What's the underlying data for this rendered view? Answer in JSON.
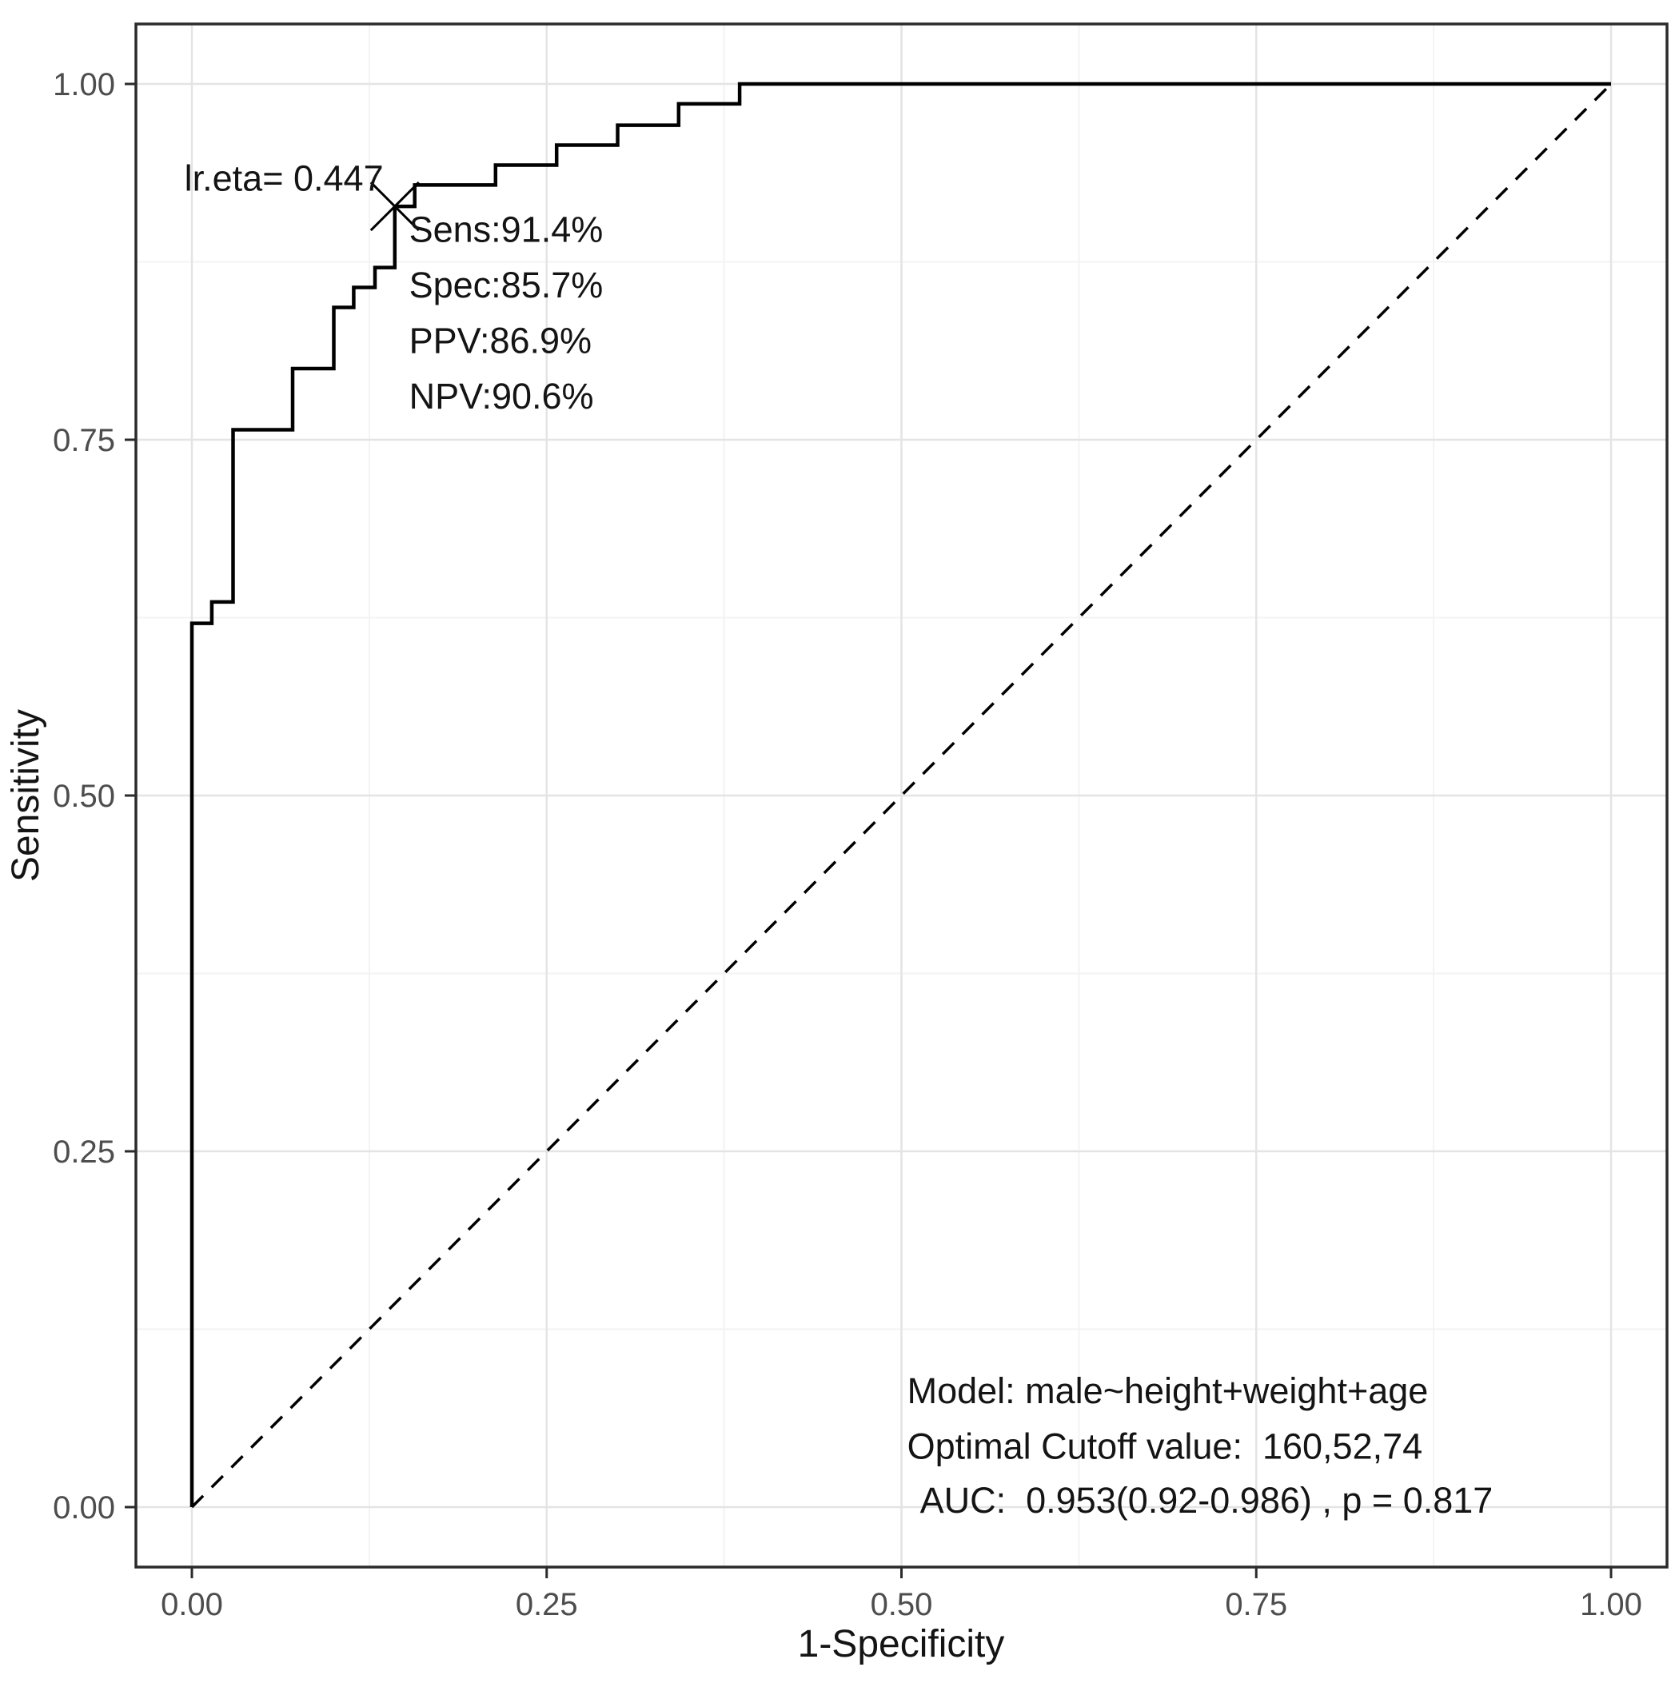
{
  "chart_data": {
    "type": "line",
    "title": "",
    "xlabel": "1-Specificity",
    "ylabel": "Sensitivity",
    "xlim": [
      0,
      1
    ],
    "ylim": [
      0,
      1
    ],
    "grid": "on",
    "legend": "none",
    "x_tick_values": [
      0,
      0.25,
      0.5,
      0.75,
      1
    ],
    "x_tick_labels": [
      "0.00",
      "0.25",
      "0.50",
      "0.75",
      "1.00"
    ],
    "y_tick_values": [
      0,
      0.25,
      0.5,
      0.75,
      1
    ],
    "y_tick_labels": [
      "0.00",
      "0.25",
      "0.50",
      "0.75",
      "1.00"
    ],
    "colors": {
      "curve": "#000000",
      "grid_major": "#e4e4e4",
      "grid_minor": "#f3f3f3",
      "panel_border": "#2b2b2b",
      "tick_label": "#4d4d4d",
      "text": "#141414"
    },
    "series": [
      {
        "name": "ROC curve",
        "style": "solid",
        "points": [
          [
            0,
            0
          ],
          [
            0,
            0.621
          ],
          [
            0.014,
            0.621
          ],
          [
            0.014,
            0.636
          ],
          [
            0.029,
            0.636
          ],
          [
            0.029,
            0.757
          ],
          [
            0.071,
            0.757
          ],
          [
            0.071,
            0.8
          ],
          [
            0.1,
            0.8
          ],
          [
            0.1,
            0.843
          ],
          [
            0.114,
            0.843
          ],
          [
            0.114,
            0.857
          ],
          [
            0.129,
            0.857
          ],
          [
            0.129,
            0.871
          ],
          [
            0.143,
            0.871
          ],
          [
            0.143,
            0.914
          ],
          [
            0.157,
            0.914
          ],
          [
            0.157,
            0.929
          ],
          [
            0.214,
            0.929
          ],
          [
            0.214,
            0.943
          ],
          [
            0.257,
            0.943
          ],
          [
            0.257,
            0.957
          ],
          [
            0.3,
            0.957
          ],
          [
            0.3,
            0.971
          ],
          [
            0.343,
            0.971
          ],
          [
            0.343,
            0.986
          ],
          [
            0.386,
            0.986
          ],
          [
            0.386,
            1
          ],
          [
            1,
            1
          ]
        ]
      },
      {
        "name": "Reference diagonal",
        "style": "dashed",
        "points": [
          [
            0,
            0
          ],
          [
            1,
            1
          ]
        ]
      }
    ],
    "optimal_point": {
      "x": 0.143,
      "y": 0.914,
      "marker": "x",
      "lr_eta": "0.447",
      "sensitivity_pct": 91.4,
      "specificity_pct": 85.7,
      "ppv_pct": 86.9,
      "npv_pct": 90.6
    },
    "auc": {
      "value": 0.953,
      "ci_low": 0.92,
      "ci_high": 0.986,
      "p_value": 0.817
    },
    "annotations": [
      {
        "id": "cutoff-threshold-label",
        "text": "lr.eta= 0.447",
        "x": 0.135,
        "y": 0.925,
        "anchor": "end"
      },
      {
        "id": "metric-sensitivity",
        "text": "Sens:91.4%",
        "x": 0.153,
        "y": 0.889,
        "anchor": "start"
      },
      {
        "id": "metric-specificity",
        "text": "Spec:85.7%",
        "x": 0.153,
        "y": 0.85,
        "anchor": "start"
      },
      {
        "id": "metric-ppv",
        "text": "PPV:86.9%",
        "x": 0.153,
        "y": 0.811,
        "anchor": "start"
      },
      {
        "id": "metric-npv",
        "text": "NPV:90.6%",
        "x": 0.153,
        "y": 0.772,
        "anchor": "start"
      },
      {
        "id": "model-formula",
        "text": "Model: male~height+weight+age",
        "x": 0.504,
        "y": 0.073,
        "anchor": "start"
      },
      {
        "id": "optimal-cutoff-value",
        "text": "Optimal Cutoff value:  160,52,74",
        "x": 0.504,
        "y": 0.034,
        "anchor": "start"
      },
      {
        "id": "auc-value",
        "text": "AUC:  0.953(0.92-0.986) , p = 0.817",
        "x": 0.513,
        "y": -0.004,
        "anchor": "start"
      }
    ]
  }
}
